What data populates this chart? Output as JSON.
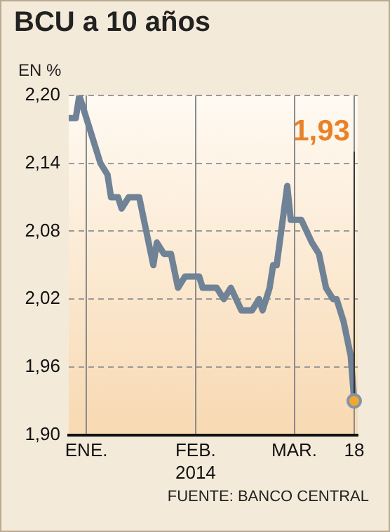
{
  "chart_data": {
    "type": "line",
    "title": "BCU a 10 años",
    "ylabel": "EN %",
    "x": [
      "2013-12-27",
      "2013-12-29",
      "2013-12-30",
      "2014-01-02",
      "2014-01-05",
      "2014-01-07",
      "2014-01-08",
      "2014-01-10",
      "2014-01-11",
      "2014-01-13",
      "2014-01-16",
      "2014-01-20",
      "2014-01-21",
      "2014-01-23",
      "2014-01-25",
      "2014-01-27",
      "2014-01-29",
      "2014-02-02",
      "2014-02-03",
      "2014-02-07",
      "2014-02-09",
      "2014-02-11",
      "2014-02-14",
      "2014-02-17",
      "2014-02-19",
      "2014-02-20",
      "2014-02-22",
      "2014-02-23",
      "2014-02-24",
      "2014-02-27",
      "2014-02-28",
      "2014-03-03",
      "2014-03-06",
      "2014-03-08",
      "2014-03-10",
      "2014-03-12",
      "2014-03-13",
      "2014-03-15",
      "2014-03-17",
      "2014-03-18"
    ],
    "series": [
      {
        "color": "#6f8296",
        "values": [
          2.18,
          2.18,
          2.2,
          2.17,
          2.14,
          2.13,
          2.11,
          2.11,
          2.1,
          2.11,
          2.11,
          2.05,
          2.07,
          2.06,
          2.06,
          2.03,
          2.04,
          2.04,
          2.03,
          2.03,
          2.02,
          2.03,
          2.01,
          2.01,
          2.02,
          2.01,
          2.03,
          2.05,
          2.05,
          2.12,
          2.09,
          2.09,
          2.07,
          2.06,
          2.03,
          2.02,
          2.02,
          2.0,
          1.97,
          1.93
        ]
      }
    ],
    "xlim": [
      "2013-12-27",
      "2014-03-19"
    ],
    "xticks": [
      {
        "value": "2014-01-01",
        "label": "ENE."
      },
      {
        "value": "2014-02-01",
        "label": "FEB.\n2014"
      },
      {
        "value": "2014-03-01",
        "label": "MAR."
      },
      {
        "value": "2014-03-18",
        "label": "18"
      }
    ],
    "ylim": [
      1.9,
      2.2
    ],
    "yticks": [
      {
        "value": 1.9,
        "label": "1,90"
      },
      {
        "value": 1.96,
        "label": "1,96"
      },
      {
        "value": 2.02,
        "label": "2,02"
      },
      {
        "value": 2.08,
        "label": "2,08"
      },
      {
        "value": 2.14,
        "label": "2,14"
      },
      {
        "value": 2.2,
        "label": "2,20"
      }
    ],
    "grid": true,
    "legend": false,
    "marker": "none",
    "line_style": "solid",
    "annotations": [
      {
        "text": "1,93",
        "x": "2014-03-18",
        "y": 1.93
      },
      "FUENTE: BANCO CENTRAL"
    ]
  }
}
